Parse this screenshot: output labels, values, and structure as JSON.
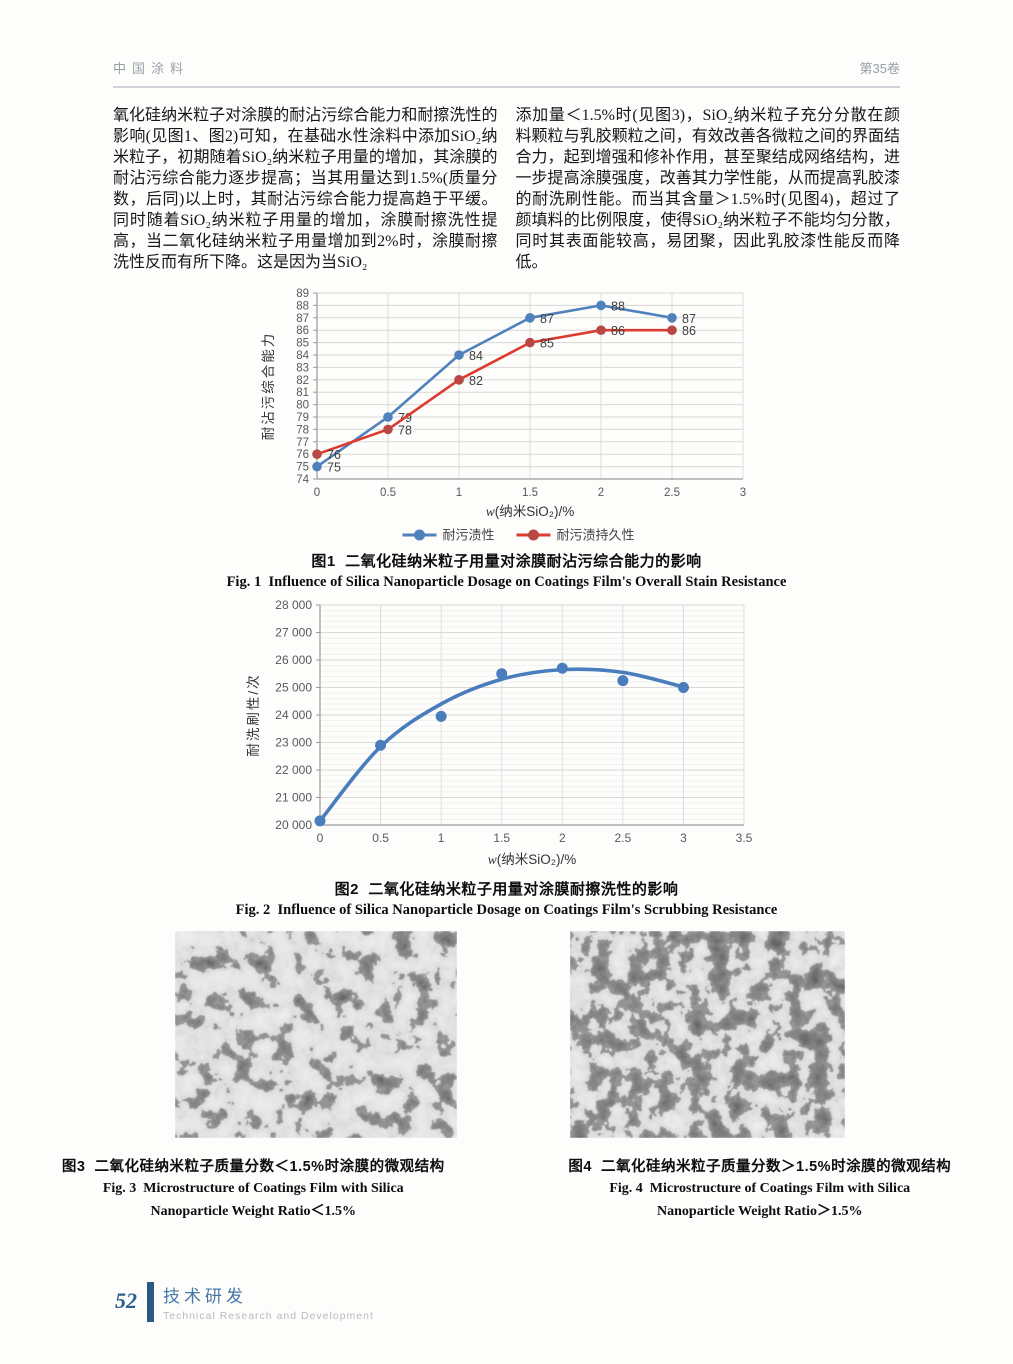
{
  "header": {
    "journal": "中国涂料",
    "volume": "第35卷"
  },
  "body": {
    "left_column": "氧化硅纳米粒子对涂膜的耐沾污综合能力和耐擦洗性的影响(见图1、图2)可知，在基础水性涂料中添加SiO₂纳米粒子，初期随着SiO₂纳米粒子用量的增加，其涂膜的耐沾污综合能力逐步提高；当其用量达到1.5%(质量分数，后同)以上时，其耐沾污综合能力提高趋于平缓。同时随着SiO₂纳米粒子用量的增加，涂膜耐擦洗性提高，当二氧化硅纳米粒子用量增加到2%时，涂膜耐擦洗性反而有所下降。这是因为当SiO₂",
    "right_column": "添加量＜1.5%时(见图3)，SiO₂纳米粒子充分分散在颜料颗粒与乳胶颗粒之间，有效改善各微粒之间的界面结合力，起到增强和修补作用，甚至聚结成网络结构，进一步提高涂膜强度，改善其力学性能，从而提高乳胶漆的耐洗刷性能。而当其含量＞1.5%时(见图4)，超过了颜填料的比例限度，使得SiO₂纳米粒子不能均匀分散，同时其表面能较高，易团聚，因此乳胶漆性能反而降低。"
  },
  "figures": {
    "fig1": {
      "caption_zh": "图1  二氧化硅纳米粒子用量对涂膜耐沾污综合能力的影响",
      "caption_en": "Fig. 1  Influence of Silica Nanoparticle Dosage on Coatings Film's Overall Stain Resistance"
    },
    "fig2": {
      "caption_zh": "图2  二氧化硅纳米粒子用量对涂膜耐擦洗性的影响",
      "caption_en": "Fig. 2  Influence of Silica Nanoparticle Dosage on Coatings Film's Scrubbing Resistance"
    },
    "fig3": {
      "caption_zh": "图3  二氧化硅纳米粒子质量分数＜1.5%时涂膜的微观结构",
      "caption_en_line1": "Fig. 3  Microstructure of Coatings Film with Silica",
      "caption_en_line2": "Nanoparticle Weight Ratio＜1.5%"
    },
    "fig4": {
      "caption_zh": "图4  二氧化硅纳米粒子质量分数＞1.5%时涂膜的微观结构",
      "caption_en_line1": "Fig. 4  Microstructure of Coatings Film with Silica",
      "caption_en_line2": "Nanoparticle Weight Ratio＞1.5%"
    }
  },
  "footer": {
    "page_number": "52",
    "section_zh": "技术研发",
    "section_en": "Technical Research and Development"
  },
  "chart_data": [
    {
      "type": "line",
      "x": [
        0,
        0.5,
        1,
        1.5,
        2,
        2.5
      ],
      "series": [
        {
          "name": "耐污渍性",
          "color": "#4f81bd",
          "marker": "#4f81bd",
          "values": [
            75,
            79,
            84,
            87,
            88,
            87
          ]
        },
        {
          "name": "耐污渍持久性",
          "color": "#dd3a30",
          "marker": "#b94743",
          "values": [
            76,
            78,
            82,
            85,
            86,
            86
          ]
        }
      ],
      "ylabel": "耐沾污综合能力",
      "xlabel_w": "w",
      "xlabel_rest": "(纳米SiO₂)/%",
      "ylim": [
        74,
        89
      ],
      "ystep": 1,
      "xlim": [
        0,
        3
      ],
      "xstep": 0.5,
      "grid": true,
      "data_labels": true,
      "legend_position": "bottom"
    },
    {
      "type": "scatter",
      "x": [
        0,
        0.5,
        1,
        1.5,
        2,
        2.5,
        3
      ],
      "values": [
        20150,
        22900,
        23950,
        25500,
        25700,
        25250,
        25000
      ],
      "trend": [
        [
          0,
          20150
        ],
        [
          0.5,
          22850
        ],
        [
          1,
          24400
        ],
        [
          1.5,
          25300
        ],
        [
          2,
          25650
        ],
        [
          2.5,
          25550
        ],
        [
          3,
          25020
        ]
      ],
      "color": "#4a7dbb",
      "ylabel": "耐洗刷性/次",
      "xlabel_w": "w",
      "xlabel_rest": "(纳米SiO₂)/%",
      "ylim": [
        20000,
        28000
      ],
      "ystep": 1000,
      "yminor": 200,
      "xlim": [
        0,
        3.5
      ],
      "xstep": 0.5,
      "ytick_space_thousands": true,
      "grid": true,
      "legend_position": "none"
    }
  ]
}
